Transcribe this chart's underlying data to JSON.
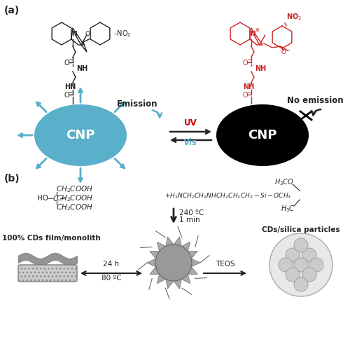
{
  "fig_width": 5.0,
  "fig_height": 4.91,
  "dpi": 100,
  "bg_color": "#ffffff",
  "cnp_left_color": "#5aafca",
  "cnp_right_color": "#000000",
  "cnp_text_color": "#ffffff",
  "arrow_blue": "#5aafca",
  "uv_color": "#cc0000",
  "mol_black": "#222222",
  "mol_red": "#cc2222",
  "label_a": "(a)",
  "label_b": "(b)",
  "cnp_text": "CNP",
  "emission_text": "Emission",
  "no_emission_text": "No emission",
  "uv_text": "UV",
  "vis_text": "Vis",
  "film_label": "100% CDs film/monolith",
  "silica_label": "CDs/silica particles",
  "temp1": "240 ºC",
  "time1": "1 min",
  "time2": "24 h",
  "temp2": "80 ºC",
  "teos": "TEOS"
}
